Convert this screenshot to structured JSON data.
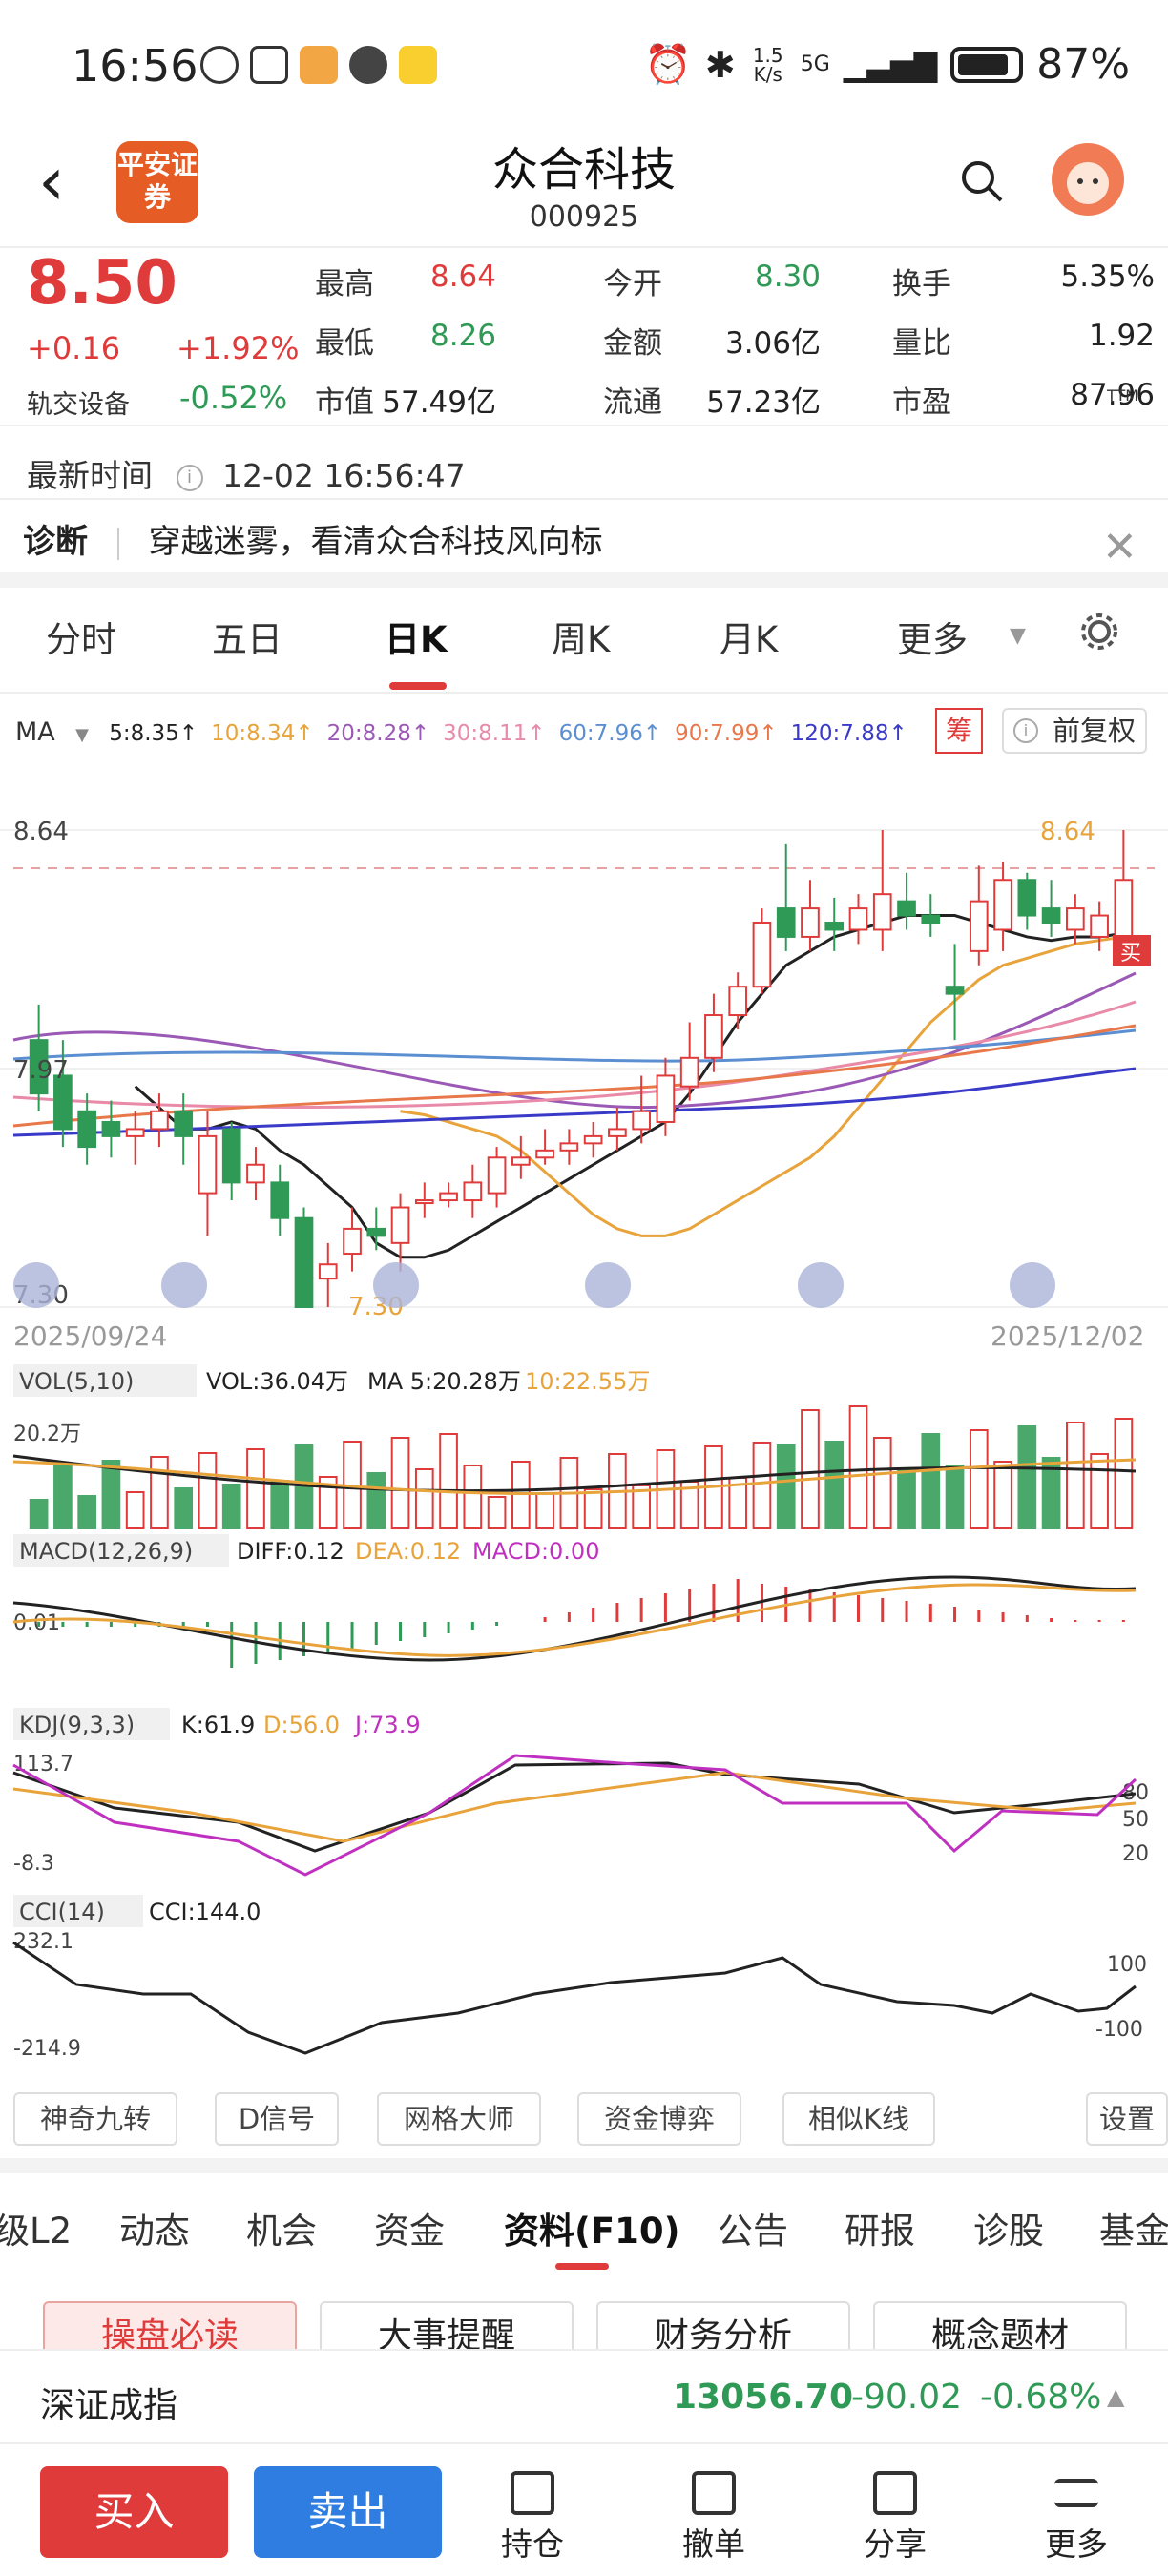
{
  "status": {
    "time": "16:56",
    "speed": "1.5 K/s",
    "network": "5G",
    "battery": "87%"
  },
  "header": {
    "broker_logo": "平安证券",
    "title": "众合科技",
    "code": "000925"
  },
  "quote": {
    "price": "8.50",
    "change": "+0.16",
    "change_pct": "+1.92%",
    "sector": "轨交设备",
    "sector_pct": "-0.52%",
    "fields": [
      {
        "label": "最高",
        "value": "8.64",
        "color": "red"
      },
      {
        "label": "今开",
        "value": "8.30",
        "color": "green"
      },
      {
        "label": "换手",
        "value": "5.35%",
        "color": "dark"
      },
      {
        "label": "最低",
        "value": "8.26",
        "color": "green"
      },
      {
        "label": "金额",
        "value": "3.06亿",
        "color": "dark"
      },
      {
        "label": "量比",
        "value": "1.92",
        "color": "dark"
      },
      {
        "label": "市值",
        "value": "57.49亿",
        "color": "dark"
      },
      {
        "label": "流通",
        "value": "57.23亿",
        "color": "dark"
      },
      {
        "label": "市盈",
        "value": "87.96",
        "color": "dark"
      }
    ],
    "pe_sup": "TTM"
  },
  "latest_time": {
    "label": "最新时间",
    "value": "12-02 16:56:47"
  },
  "diagnosis": {
    "label": "诊断",
    "text": "穿越迷雾，看清众合科技风向标"
  },
  "period_tabs": [
    "分时",
    "五日",
    "日K",
    "周K",
    "月K",
    "更多"
  ],
  "active_period": "日K",
  "ma": {
    "label": "MA",
    "items": [
      {
        "text": "5:8.35↑",
        "color": "#222"
      },
      {
        "text": "10:8.34↑",
        "color": "#e8a33a"
      },
      {
        "text": "20:8.28↑",
        "color": "#9b59b6"
      },
      {
        "text": "30:8.11↑",
        "color": "#e88aa8"
      },
      {
        "text": "60:7.96↑",
        "color": "#5b8fd1"
      },
      {
        "text": "90:7.99↑",
        "color": "#e8774a"
      },
      {
        "text": "120:7.88↑",
        "color": "#3a3ac8"
      }
    ],
    "chip_btn": "筹",
    "adjust_btn": "前复权"
  },
  "kline": {
    "high_label": "8.64",
    "mid_label": "7.97",
    "low_label": "7.30",
    "max_marker": "8.64",
    "min_marker": "7.30",
    "start_date": "2025/09/24",
    "end_date": "2025/12/02",
    "buy_marker": "买"
  },
  "vol": {
    "name": "VOL(5,10)",
    "text": "VOL:36.04万",
    "ma5": "MA 5:20.28万",
    "ma10": "10:22.55万",
    "axis": "20.2万"
  },
  "macd": {
    "name": "MACD(12,26,9)",
    "diff": "DIFF:0.12",
    "dea": "DEA:0.12",
    "macd": "MACD:0.00",
    "axis": "0.01"
  },
  "kdj": {
    "name": "KDJ(9,3,3)",
    "k": "K:61.9",
    "d": "D:56.0",
    "j": "J:73.9",
    "top": "113.7",
    "bottom": "-8.3",
    "l80": "80",
    "l50": "50",
    "l20": "20"
  },
  "cci": {
    "name": "CCI(14)",
    "value": "CCI:144.0",
    "top": "232.1",
    "bottom": "-214.9",
    "l100": "100",
    "lm100": "-100"
  },
  "tools": [
    "神奇九转",
    "D信号",
    "网格大师",
    "资金博弈",
    "相似K线",
    "设置"
  ],
  "f10_tabs": [
    "级L2",
    "动态",
    "机会",
    "资金",
    "资料(F10)",
    "公告",
    "研报",
    "诊股",
    "基金"
  ],
  "cards": [
    "操盘必读",
    "大事提醒",
    "财务分析",
    "概念题材"
  ],
  "index": {
    "name": "深证成指",
    "value": "13056.70",
    "change": "-90.02",
    "pct": "-0.68%"
  },
  "bottom": {
    "buy": "买入",
    "sell": "卖出",
    "items": [
      "持仓",
      "撤单",
      "分享",
      "更多"
    ]
  },
  "chart_data": {
    "type": "candlestick",
    "x_range": [
      "2025/09/24",
      "2025/12/02"
    ],
    "ylim": [
      7.3,
      8.64
    ],
    "candles": [
      [
        8.05,
        7.9,
        8.15,
        7.85
      ],
      [
        7.95,
        7.8,
        8.05,
        7.75
      ],
      [
        7.85,
        7.75,
        7.9,
        7.7
      ],
      [
        7.82,
        7.78,
        7.88,
        7.72
      ],
      [
        7.78,
        7.8,
        7.85,
        7.7
      ],
      [
        7.8,
        7.85,
        7.9,
        7.75
      ],
      [
        7.85,
        7.78,
        7.9,
        7.7
      ],
      [
        7.62,
        7.78,
        7.85,
        7.5
      ],
      [
        7.8,
        7.65,
        7.82,
        7.6
      ],
      [
        7.65,
        7.7,
        7.75,
        7.6
      ],
      [
        7.65,
        7.55,
        7.7,
        7.5
      ],
      [
        7.55,
        7.3,
        7.58,
        7.3
      ],
      [
        7.38,
        7.42,
        7.48,
        7.3
      ],
      [
        7.45,
        7.52,
        7.58,
        7.4
      ],
      [
        7.52,
        7.5,
        7.58,
        7.46
      ],
      [
        7.48,
        7.58,
        7.62,
        7.4
      ],
      [
        7.6,
        7.6,
        7.65,
        7.55
      ],
      [
        7.6,
        7.62,
        7.65,
        7.58
      ],
      [
        7.6,
        7.65,
        7.7,
        7.55
      ],
      [
        7.62,
        7.72,
        7.75,
        7.58
      ],
      [
        7.7,
        7.72,
        7.78,
        7.66
      ],
      [
        7.72,
        7.74,
        7.8,
        7.7
      ],
      [
        7.74,
        7.76,
        7.8,
        7.7
      ],
      [
        7.76,
        7.78,
        7.82,
        7.72
      ],
      [
        7.78,
        7.8,
        7.86,
        7.74
      ],
      [
        7.8,
        7.85,
        7.95,
        7.76
      ],
      [
        7.82,
        7.95,
        8.0,
        7.78
      ],
      [
        7.92,
        8.0,
        8.1,
        7.88
      ],
      [
        8.0,
        8.12,
        8.18,
        7.96
      ],
      [
        8.12,
        8.2,
        8.24,
        8.08
      ],
      [
        8.2,
        8.38,
        8.42,
        8.18
      ],
      [
        8.42,
        8.34,
        8.6,
        8.3
      ],
      [
        8.34,
        8.42,
        8.5,
        8.3
      ],
      [
        8.38,
        8.36,
        8.45,
        8.3
      ],
      [
        8.36,
        8.42,
        8.46,
        8.32
      ],
      [
        8.36,
        8.46,
        8.64,
        8.3
      ],
      [
        8.44,
        8.4,
        8.52,
        8.36
      ],
      [
        8.4,
        8.38,
        8.46,
        8.34
      ],
      [
        8.2,
        8.18,
        8.32,
        8.05
      ],
      [
        8.3,
        8.44,
        8.54,
        8.26
      ],
      [
        8.36,
        8.5,
        8.55,
        8.3
      ],
      [
        8.5,
        8.4,
        8.52,
        8.36
      ],
      [
        8.42,
        8.38,
        8.5,
        8.34
      ],
      [
        8.36,
        8.42,
        8.46,
        8.32
      ],
      [
        8.34,
        8.4,
        8.44,
        8.3
      ],
      [
        8.3,
        8.5,
        8.64,
        8.26
      ]
    ],
    "ma5": [
      7.92,
      7.86,
      7.8,
      7.8,
      7.82,
      7.8,
      7.74,
      7.7,
      7.64,
      7.58,
      7.48,
      7.44,
      7.44,
      7.46,
      7.5,
      7.54,
      7.58,
      7.62,
      7.66,
      7.7,
      7.74,
      7.78,
      7.82,
      7.9,
      8.0,
      8.1,
      8.18,
      8.26,
      8.3,
      8.34,
      8.36,
      8.38,
      8.4,
      8.4,
      8.4,
      8.38,
      8.36,
      8.34,
      8.33,
      8.34,
      8.34,
      8.35
    ],
    "ma10": [
      7.85,
      7.84,
      7.82,
      7.8,
      7.78,
      7.74,
      7.68,
      7.62,
      7.56,
      7.52,
      7.5,
      7.5,
      7.52,
      7.56,
      7.6,
      7.64,
      7.68,
      7.72,
      7.78,
      7.86,
      7.94,
      8.02,
      8.1,
      8.16,
      8.22,
      8.26,
      8.28,
      8.3,
      8.32,
      8.33,
      8.34
    ]
  },
  "volume_bars": "see script"
}
